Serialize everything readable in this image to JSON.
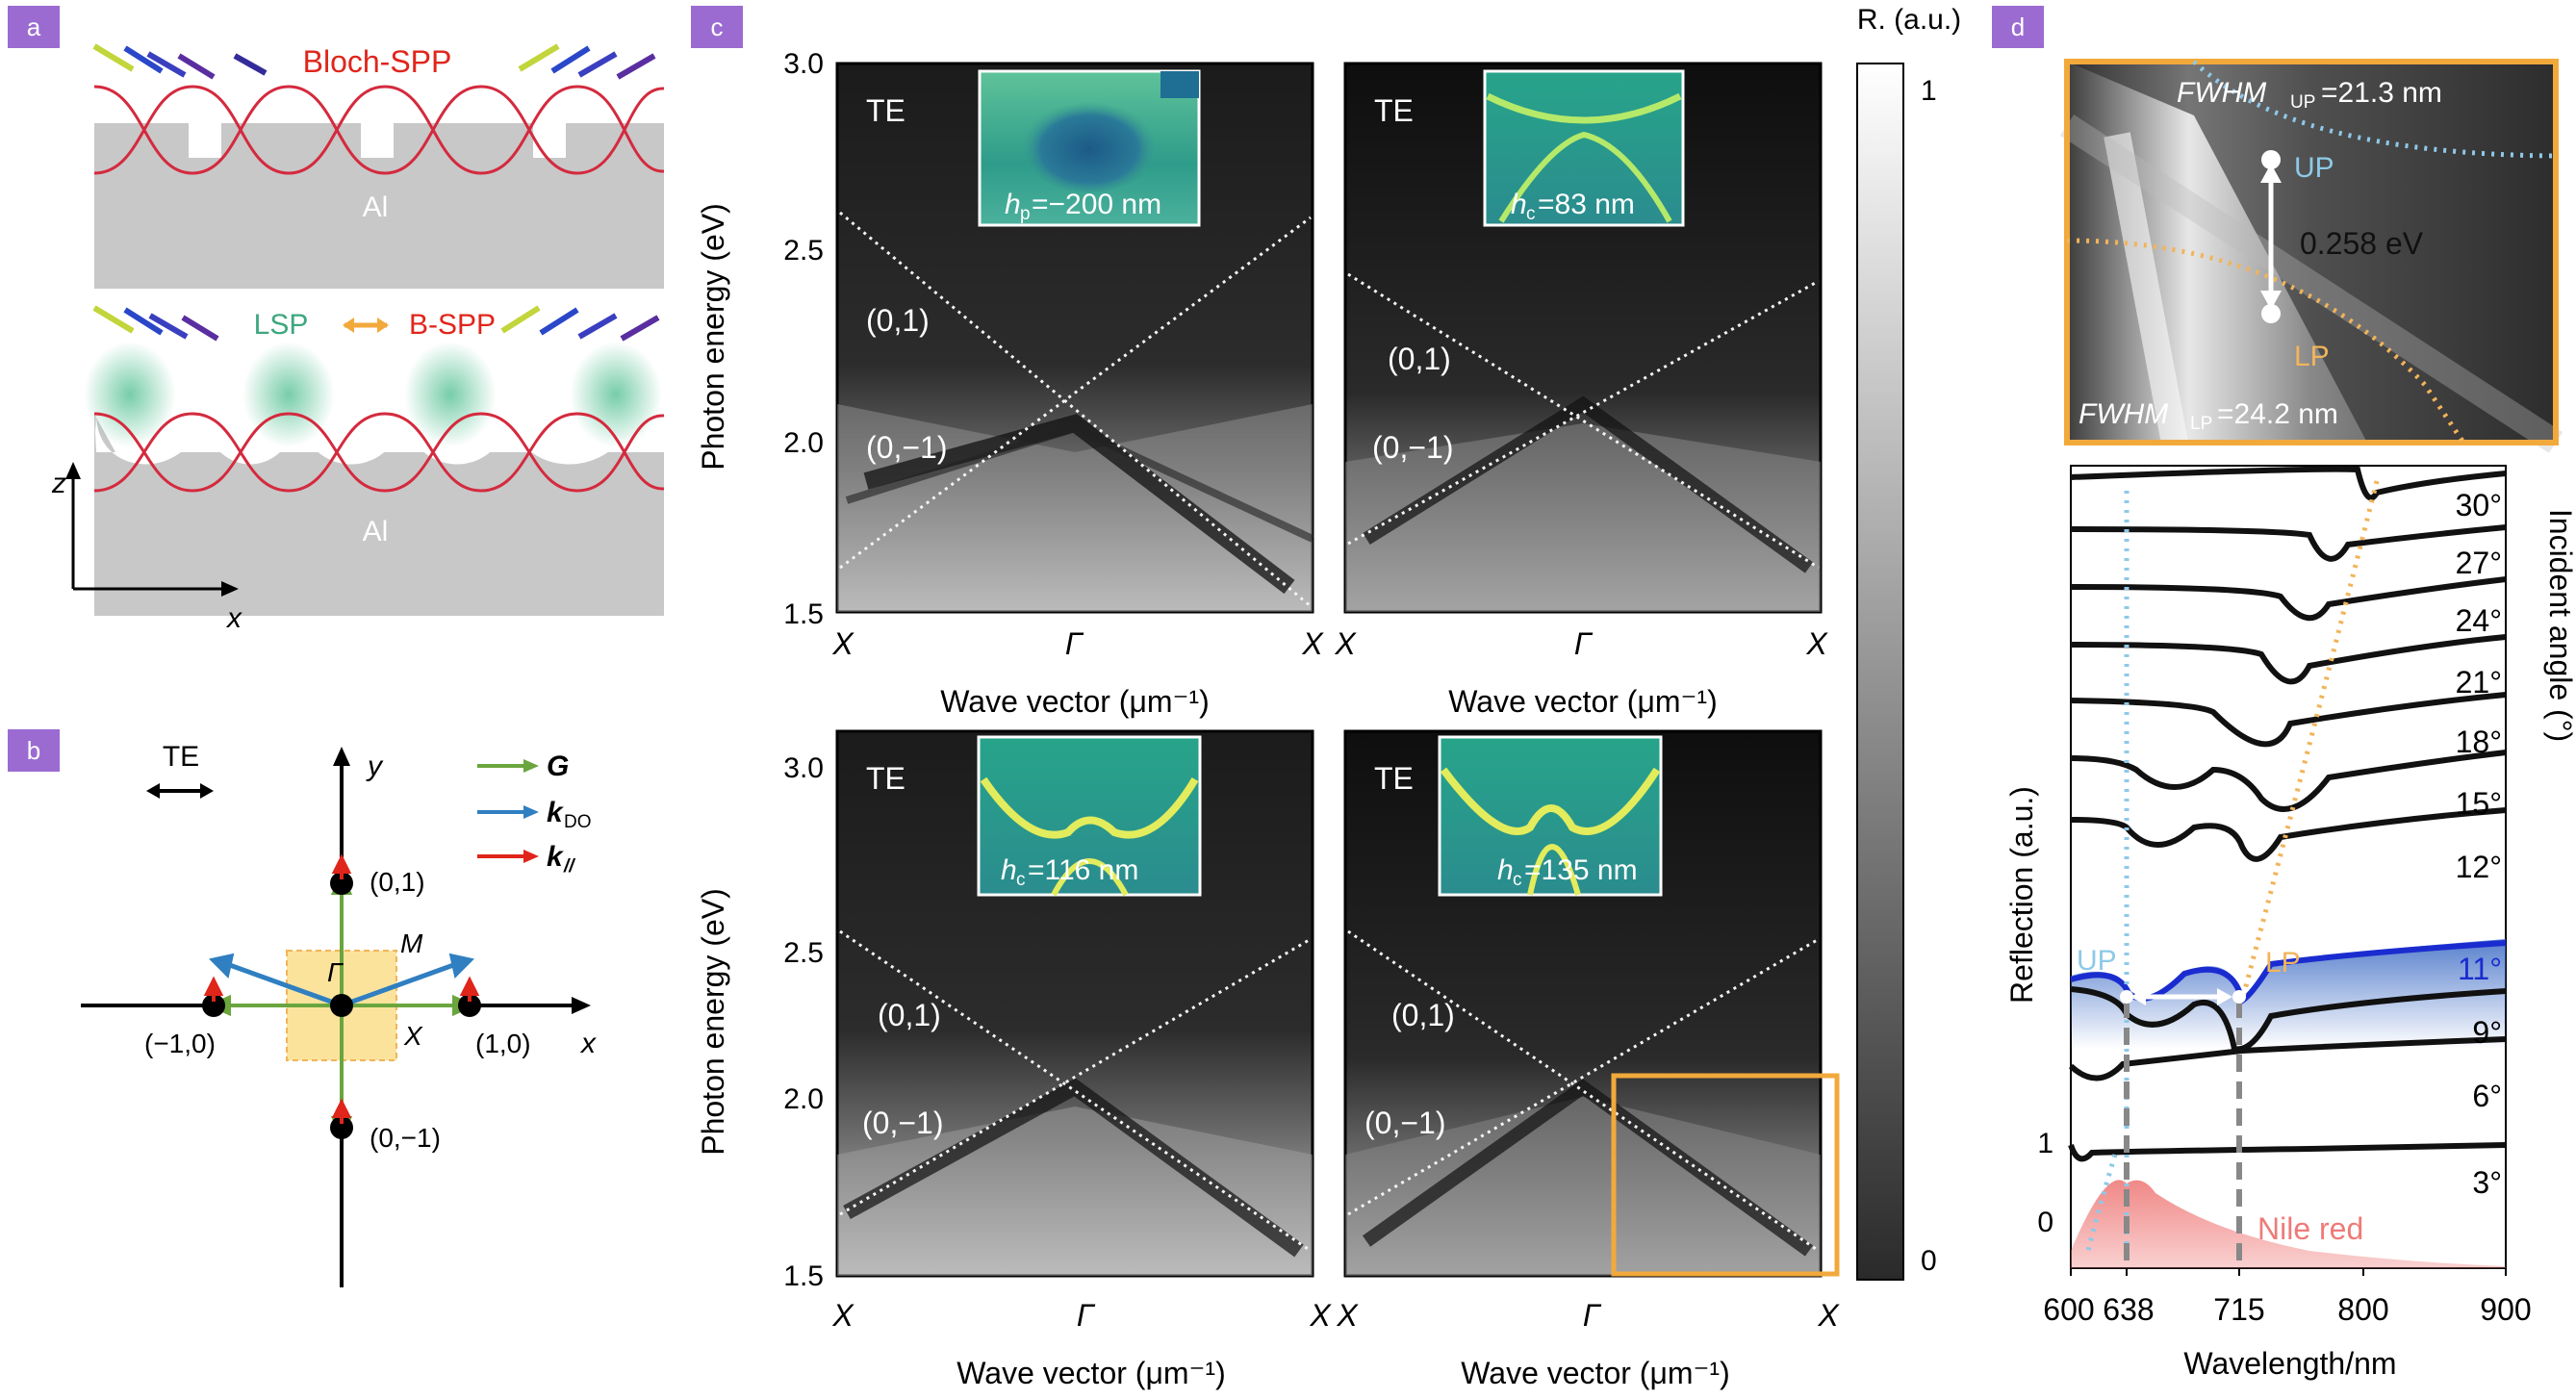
{
  "panel_labels": {
    "a": "a",
    "b": "b",
    "c": "c",
    "d": "d"
  },
  "panel_a": {
    "top_title": "Bloch-SPP",
    "metal": "Al",
    "lsp": "LSP",
    "bspp": "B-SPP",
    "axis_z": "z",
    "axis_x": "x"
  },
  "panel_b": {
    "pol": "TE",
    "axis_y": "y",
    "axis_x": "x",
    "points": {
      "p01": "(0,1)",
      "p0m1": "(0,−1)",
      "pm10": "(−1,0)",
      "p10": "(1,0)"
    },
    "sym": {
      "gamma": "Γ",
      "m": "M",
      "x": "X"
    },
    "legend": [
      {
        "sym": "G",
        "sub": "",
        "color": "#6aa53e"
      },
      {
        "sym": "k",
        "sub": "DO",
        "color": "#2f7fc1"
      },
      {
        "sym": "k",
        "sub": "//",
        "color": "#e0251b"
      }
    ]
  },
  "panel_c": {
    "colorbar_title": "R. (a.u.)",
    "colorbar_ticks": [
      "1",
      "0"
    ],
    "ylabel": "Photon energy (eV)",
    "xlabel": "Wave vector (μm⁻¹)",
    "yticks": [
      "3.0",
      "2.5",
      "2.0",
      "1.5"
    ],
    "xticks": [
      "X",
      "Γ",
      "X"
    ],
    "subpanels": [
      {
        "pol": "TE",
        "inset_label_sym": "h",
        "inset_label_sub": "p",
        "inset_label_val": "=−200 nm",
        "line_labels": [
          "(0,1)",
          "(0,−1)"
        ]
      },
      {
        "pol": "TE",
        "inset_label_sym": "h",
        "inset_label_sub": "c",
        "inset_label_val": "=83 nm",
        "line_labels": [
          "(0,1)",
          "(0,−1)"
        ]
      },
      {
        "pol": "TE",
        "inset_label_sym": "h",
        "inset_label_sub": "c",
        "inset_label_val": "=116 nm",
        "line_labels": [
          "(0,1)",
          "(0,−1)"
        ]
      },
      {
        "pol": "TE",
        "inset_label_sym": "h",
        "inset_label_sub": "c",
        "inset_label_val": "=135 nm",
        "line_labels": [
          "(0,1)",
          "(0,−1)"
        ]
      }
    ]
  },
  "panel_d": {
    "fwhm_up_sym": "FWHM",
    "fwhm_up_sub": "UP",
    "fwhm_up_val": "=21.3 nm",
    "fwhm_lp_sym": "FWHM",
    "fwhm_lp_sub": "LP",
    "fwhm_lp_val": "=24.2 nm",
    "up": "UP",
    "lp": "LP",
    "splitting": "0.258 eV",
    "ylabel": "Reflection (a.u.)",
    "y2label": "Incident angle (°)",
    "xlabel": "Wavelength/nm",
    "xticks": [
      "600",
      "638",
      "715",
      "800",
      "900"
    ],
    "yticks": [
      "1",
      "0"
    ],
    "angles": [
      "30°",
      "27°",
      "24°",
      "21°",
      "18°",
      "15°",
      "12°",
      "11°",
      "9°",
      "6°",
      "3°"
    ],
    "nile_red": "Nile red",
    "colors": {
      "up": "#8ec9e8",
      "lp": "#f2b45a",
      "highlight": "#1a2ccf",
      "nile": "#ee7b79",
      "accent": "#f2a93b",
      "tag": "#9b6bd1"
    }
  },
  "chart_data": {
    "type": "line",
    "title": "",
    "xlabel": "Wavelength/nm",
    "ylabel": "Reflection (a.u.)",
    "xlim": [
      600,
      900
    ],
    "series": [
      {
        "name": "3°",
        "dip_nm": []
      },
      {
        "name": "6°",
        "dip_nm": [
          620
        ]
      },
      {
        "name": "9°",
        "dip_nm": [
          638,
          712
        ]
      },
      {
        "name": "11°",
        "dip_nm": [
          638,
          715
        ]
      },
      {
        "name": "12°",
        "dip_nm": [
          638,
          720
        ]
      },
      {
        "name": "15°",
        "dip_nm": [
          640,
          725
        ]
      },
      {
        "name": "18°",
        "dip_nm": [
          640,
          740
        ]
      },
      {
        "name": "21°",
        "dip_nm": [
          640,
          758
        ]
      },
      {
        "name": "24°",
        "dip_nm": [
          640,
          768
        ]
      },
      {
        "name": "27°",
        "dip_nm": [
          640,
          778
        ]
      },
      {
        "name": "30°",
        "dip_nm": [
          640,
          805
        ]
      },
      {
        "name": "Nile red",
        "peak_nm": 638
      }
    ]
  }
}
